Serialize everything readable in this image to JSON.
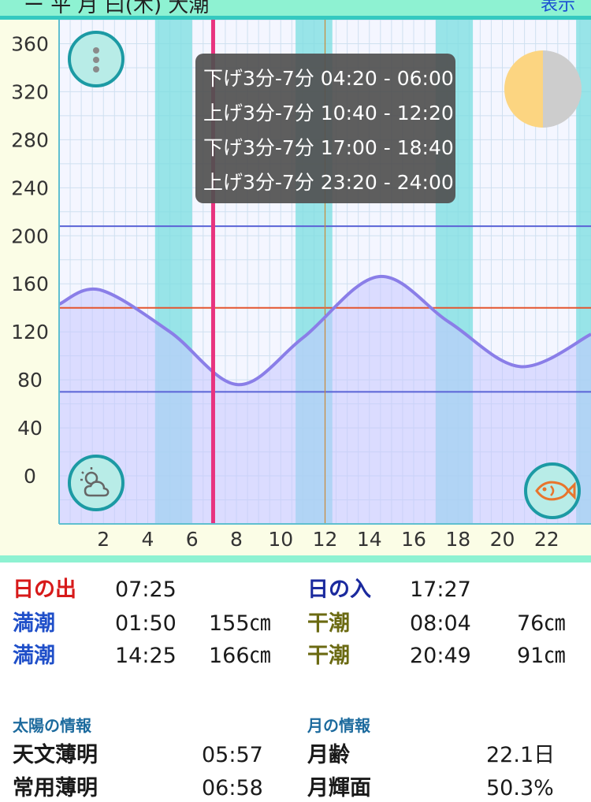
{
  "header": {
    "title_partial": "ー 平 月 曰(木) 大潮",
    "right_partial": "表示"
  },
  "chart_data": {
    "type": "area",
    "x_ticks": [
      "2",
      "4",
      "6",
      "8",
      "10",
      "12",
      "14",
      "16",
      "18",
      "20",
      "22"
    ],
    "y_ticks": [
      "360",
      "320",
      "280",
      "240",
      "200",
      "160",
      "120",
      "80",
      "40",
      "0"
    ],
    "xlim": [
      0,
      24
    ],
    "ylim": [
      -40,
      380
    ],
    "series": [
      {
        "x": [
          0,
          1.83,
          5,
          8.07,
          11,
          14.42,
          17.6,
          20.82,
          24
        ],
        "y": [
          143,
          155,
          120,
          76,
          115,
          166,
          128,
          91,
          118
        ]
      }
    ],
    "reference_lines": {
      "upper": 208,
      "middle": 140,
      "lower": 70
    },
    "current_time": 6.95,
    "fishing_windows": [
      [
        4.33,
        6.0
      ],
      [
        10.67,
        12.33
      ],
      [
        17.0,
        18.67
      ],
      [
        23.33,
        24.0
      ]
    ],
    "colors": {
      "curve": "#8a7ee8",
      "fill": "#c7c6ff",
      "band": "#79dde0",
      "now": "#e8337f",
      "mid": "#e4552f",
      "ref": "#5a63d6"
    }
  },
  "tooltip": {
    "lines": [
      "下げ3分-7分 04:20 - 06:00",
      "上げ3分-7分 10:40 - 12:20",
      "下げ3分-7分 17:00 - 18:40",
      "上げ3分-7分 23:20 - 24:00"
    ]
  },
  "buttons": {
    "menu_icon": "more-vertical-icon",
    "weather_icon": "weather-icon",
    "fish_icon": "fish-icon",
    "moon_icon": "moon-phase-icon"
  },
  "tides": {
    "sunrise_label": "日の出",
    "sunrise": "07:25",
    "sunset_label": "日の入",
    "sunset": "17:27",
    "high1_label": "満潮",
    "high1_time": "01:50",
    "high1_level": "155㎝",
    "low1_label": "干潮",
    "low1_time": "08:04",
    "low1_level": "76㎝",
    "high2_label": "満潮",
    "high2_time": "14:25",
    "high2_level": "166㎝",
    "low2_label": "干潮",
    "low2_time": "20:49",
    "low2_level": "91㎝"
  },
  "sun": {
    "heading": "太陽の情報",
    "r1_label": "天文薄明",
    "r1_value": "05:57",
    "r2_label": "常用薄明",
    "r2_value": "06:58"
  },
  "moon": {
    "heading": "月の情報",
    "r1_label": "月齢",
    "r1_value": "22.1日",
    "r2_label": "月輝面",
    "r2_value": "50.3%"
  }
}
